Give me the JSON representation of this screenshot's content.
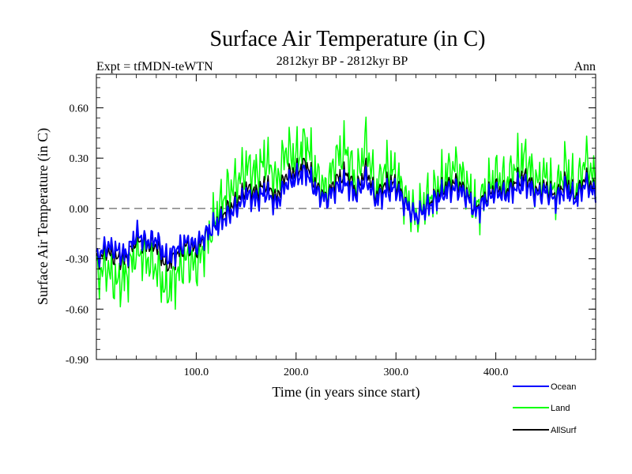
{
  "chart_data": {
    "type": "line",
    "title": "Surface Air Temperature (in C)",
    "subtitle_left": "Expt = tfMDN-teWTN",
    "subtitle_center": "2812kyr BP - 2812kyr BP",
    "subtitle_right": "Ann",
    "xlabel": "Time (in years since start)",
    "ylabel": "Surface Air Temperature (in C)",
    "xlim": [
      0,
      500
    ],
    "ylim": [
      -0.9,
      0.8
    ],
    "x_ticks": [
      {
        "value": 100,
        "label": "100.0"
      },
      {
        "value": 200,
        "label": "200.0"
      },
      {
        "value": 300,
        "label": "300.0"
      },
      {
        "value": 400,
        "label": "400.0"
      }
    ],
    "y_ticks": [
      {
        "value": -0.9,
        "label": "-0.90"
      },
      {
        "value": -0.6,
        "label": "-0.60"
      },
      {
        "value": -0.3,
        "label": "-0.30"
      },
      {
        "value": 0.0,
        "label": "0.00"
      },
      {
        "value": 0.3,
        "label": "0.30"
      },
      {
        "value": 0.6,
        "label": "0.60"
      }
    ],
    "zero_line": 0,
    "x": [
      0,
      10,
      20,
      30,
      40,
      50,
      60,
      70,
      80,
      90,
      100,
      110,
      120,
      130,
      140,
      150,
      160,
      170,
      180,
      190,
      200,
      210,
      220,
      230,
      240,
      250,
      260,
      270,
      280,
      290,
      300,
      310,
      320,
      330,
      340,
      350,
      360,
      370,
      380,
      390,
      400,
      410,
      420,
      430,
      440,
      450,
      460,
      470,
      480,
      490,
      500
    ],
    "series": [
      {
        "name": "Ocean",
        "color": "#0000ff",
        "values": [
          -0.3,
          -0.22,
          -0.25,
          -0.28,
          -0.15,
          -0.2,
          -0.18,
          -0.3,
          -0.25,
          -0.2,
          -0.22,
          -0.15,
          -0.1,
          -0.05,
          0.0,
          0.08,
          0.05,
          0.1,
          0.02,
          0.15,
          0.18,
          0.22,
          0.1,
          0.05,
          0.12,
          0.15,
          0.08,
          0.18,
          0.05,
          0.1,
          0.12,
          0.02,
          -0.05,
          0.0,
          0.05,
          0.1,
          0.12,
          0.08,
          -0.02,
          0.05,
          0.1,
          0.08,
          0.12,
          0.15,
          0.08,
          0.1,
          0.05,
          0.12,
          0.05,
          0.15,
          0.08
        ]
      },
      {
        "name": "Land",
        "color": "#00ff00",
        "values": [
          -0.4,
          -0.35,
          -0.45,
          -0.4,
          -0.25,
          -0.3,
          -0.35,
          -0.5,
          -0.4,
          -0.3,
          -0.35,
          -0.2,
          -0.05,
          0.1,
          0.15,
          0.25,
          0.2,
          0.3,
          0.15,
          0.35,
          0.3,
          0.4,
          0.2,
          0.1,
          0.3,
          0.35,
          0.15,
          0.4,
          0.1,
          0.25,
          0.2,
          0.05,
          -0.05,
          0.05,
          0.1,
          0.2,
          0.25,
          0.15,
          0.0,
          0.1,
          0.2,
          0.15,
          0.25,
          0.3,
          0.15,
          0.2,
          0.1,
          0.25,
          0.1,
          0.3,
          0.15
        ]
      },
      {
        "name": "AllSurf",
        "color": "#000000",
        "values": [
          -0.32,
          -0.25,
          -0.3,
          -0.3,
          -0.18,
          -0.22,
          -0.22,
          -0.35,
          -0.28,
          -0.22,
          -0.25,
          -0.16,
          -0.09,
          -0.01,
          0.04,
          0.12,
          0.09,
          0.15,
          0.06,
          0.2,
          0.22,
          0.27,
          0.13,
          0.06,
          0.17,
          0.21,
          0.1,
          0.24,
          0.07,
          0.15,
          0.15,
          0.03,
          -0.05,
          0.01,
          0.07,
          0.13,
          0.16,
          0.1,
          -0.01,
          0.07,
          0.13,
          0.1,
          0.16,
          0.19,
          0.1,
          0.13,
          0.07,
          0.16,
          0.07,
          0.19,
          0.1
        ]
      }
    ],
    "legend_position": "bottom-right"
  }
}
